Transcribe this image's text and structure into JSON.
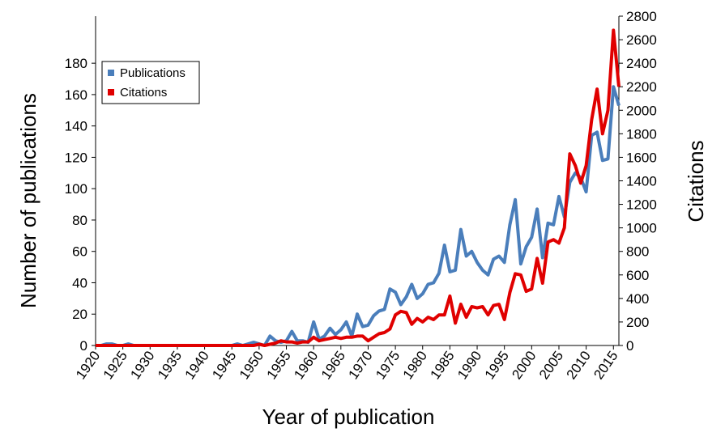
{
  "chart_data": {
    "type": "line",
    "x_label": "Year of publication",
    "y_label": "Number of publications",
    "y2_label": "Citations",
    "x": [
      1920,
      1921,
      1922,
      1923,
      1924,
      1925,
      1926,
      1927,
      1928,
      1929,
      1930,
      1931,
      1932,
      1933,
      1934,
      1935,
      1936,
      1937,
      1938,
      1939,
      1940,
      1941,
      1942,
      1943,
      1944,
      1945,
      1946,
      1947,
      1948,
      1949,
      1950,
      1951,
      1952,
      1953,
      1954,
      1955,
      1956,
      1957,
      1958,
      1959,
      1960,
      1961,
      1962,
      1963,
      1964,
      1965,
      1966,
      1967,
      1968,
      1969,
      1970,
      1971,
      1972,
      1973,
      1974,
      1975,
      1976,
      1977,
      1978,
      1979,
      1980,
      1981,
      1982,
      1983,
      1984,
      1985,
      1986,
      1987,
      1988,
      1989,
      1990,
      1991,
      1992,
      1993,
      1994,
      1995,
      1996,
      1997,
      1998,
      1999,
      2000,
      2001,
      2002,
      2003,
      2004,
      2005,
      2006,
      2007,
      2008,
      2009,
      2010,
      2011,
      2012,
      2013,
      2014,
      2015,
      2016
    ],
    "series": [
      {
        "name": "Publications",
        "color": "#4a7ebb",
        "axis": "y",
        "values": [
          0,
          0,
          1,
          1,
          0,
          0,
          1,
          0,
          0,
          0,
          0,
          0,
          0,
          0,
          0,
          0,
          0,
          0,
          0,
          0,
          0,
          0,
          0,
          0,
          0,
          0,
          1,
          0,
          1,
          2,
          1,
          0,
          6,
          3,
          2,
          3,
          9,
          3,
          3,
          2,
          15,
          4,
          6,
          11,
          7,
          10,
          15,
          6,
          20,
          12,
          13,
          19,
          22,
          23,
          36,
          34,
          26,
          31,
          39,
          30,
          33,
          39,
          40,
          46,
          64,
          47,
          48,
          74,
          57,
          60,
          53,
          48,
          45,
          55,
          57,
          53,
          77,
          93,
          52,
          63,
          69,
          87,
          56,
          78,
          77,
          95,
          82,
          104,
          110,
          107,
          98,
          134,
          136,
          118,
          119,
          165,
          153
        ]
      },
      {
        "name": "Citations",
        "color": "#e00000",
        "axis": "y2",
        "values": [
          0,
          0,
          0,
          0,
          0,
          0,
          0,
          0,
          0,
          0,
          0,
          0,
          0,
          0,
          0,
          0,
          0,
          0,
          0,
          0,
          0,
          0,
          0,
          0,
          0,
          0,
          0,
          0,
          0,
          0,
          10,
          0,
          10,
          20,
          40,
          30,
          30,
          20,
          30,
          30,
          70,
          40,
          50,
          60,
          70,
          60,
          70,
          70,
          80,
          80,
          40,
          70,
          100,
          110,
          140,
          260,
          290,
          280,
          180,
          230,
          200,
          240,
          220,
          260,
          260,
          420,
          190,
          350,
          240,
          330,
          320,
          330,
          260,
          340,
          350,
          220,
          450,
          610,
          600,
          460,
          480,
          740,
          530,
          880,
          900,
          870,
          1000,
          1630,
          1530,
          1380,
          1530,
          1920,
          2180,
          1800,
          2000,
          2680,
          2200
        ]
      }
    ],
    "xlim": [
      1920,
      2016
    ],
    "xticks": [
      1920,
      1925,
      1930,
      1935,
      1940,
      1945,
      1950,
      1955,
      1960,
      1965,
      1970,
      1975,
      1980,
      1985,
      1990,
      1995,
      2000,
      2005,
      2010,
      2015
    ],
    "ylim": [
      0,
      210
    ],
    "yticks": [
      0,
      20,
      40,
      60,
      80,
      100,
      120,
      140,
      160,
      180
    ],
    "y2lim": [
      0,
      2800
    ],
    "y2ticks": [
      0,
      200,
      400,
      600,
      800,
      1000,
      1200,
      1400,
      1600,
      1800,
      2000,
      2200,
      2400,
      2600,
      2800
    ],
    "legend": "upper left",
    "grid": false
  }
}
